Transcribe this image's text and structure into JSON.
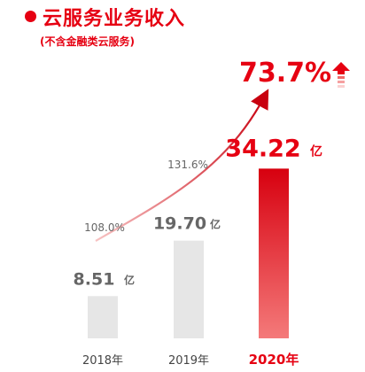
{
  "title": "云服务业务收入",
  "subtitle": "(不含金融类云服务)",
  "colors": {
    "accent": "#e60012",
    "bar_gray": "#e6e6e6",
    "bar_red_top": "#d7000f",
    "bar_red_bottom": "#f47a7a",
    "value_gray": "#666666",
    "axis_text": "#444444"
  },
  "icons": [
    "red-bullet-icon",
    "up-arrow-icon"
  ],
  "chart_data": {
    "type": "bar",
    "categories": [
      "2018年",
      "2019年",
      "2020年"
    ],
    "values": [
      8.51,
      19.7,
      34.22
    ],
    "value_labels": [
      "8.51",
      "19.70",
      "34.22"
    ],
    "unit": "亿",
    "growth_rates": [
      {
        "label": "108.0%"
      },
      {
        "label": "131.6%"
      },
      {
        "label": "73.7%"
      }
    ],
    "highlight_index": 2
  }
}
